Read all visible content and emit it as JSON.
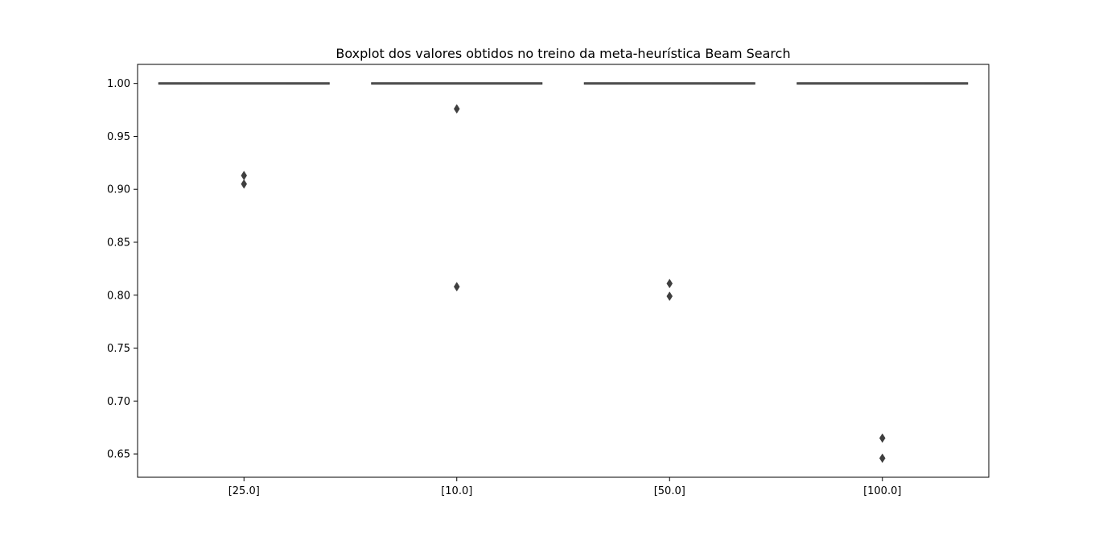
{
  "chart_data": {
    "type": "boxplot",
    "title": "Boxplot dos valores obtidos no treino da meta-heurística Beam Search",
    "xlabel": "",
    "ylabel": "",
    "categories": [
      "[25.0]",
      "[10.0]",
      "[50.0]",
      "[100.0]"
    ],
    "boxes": [
      {
        "category": "[25.0]",
        "min": 1.0,
        "q1": 1.0,
        "median": 1.0,
        "q3": 1.0,
        "max": 1.0,
        "outliers": [
          0.913,
          0.905
        ]
      },
      {
        "category": "[10.0]",
        "min": 1.0,
        "q1": 1.0,
        "median": 1.0,
        "q3": 1.0,
        "max": 1.0,
        "outliers": [
          0.976,
          0.808
        ]
      },
      {
        "category": "[50.0]",
        "min": 1.0,
        "q1": 1.0,
        "median": 1.0,
        "q3": 1.0,
        "max": 1.0,
        "outliers": [
          0.811,
          0.799
        ]
      },
      {
        "category": "[100.0]",
        "min": 1.0,
        "q1": 1.0,
        "median": 1.0,
        "q3": 1.0,
        "max": 1.0,
        "outliers": [
          0.665,
          0.646
        ]
      }
    ],
    "yticks": [
      0.65,
      0.7,
      0.75,
      0.8,
      0.85,
      0.9,
      0.95,
      1.0
    ],
    "ytick_labels": [
      "0.65",
      "0.70",
      "0.75",
      "0.80",
      "0.85",
      "0.90",
      "0.95",
      "1.00"
    ],
    "ylim": [
      0.628,
      1.018
    ],
    "grid": false,
    "colors": {
      "box": "#3f3f3f",
      "median": "#555555",
      "outlier": "#3f3f3f",
      "axis": "#000000"
    }
  }
}
